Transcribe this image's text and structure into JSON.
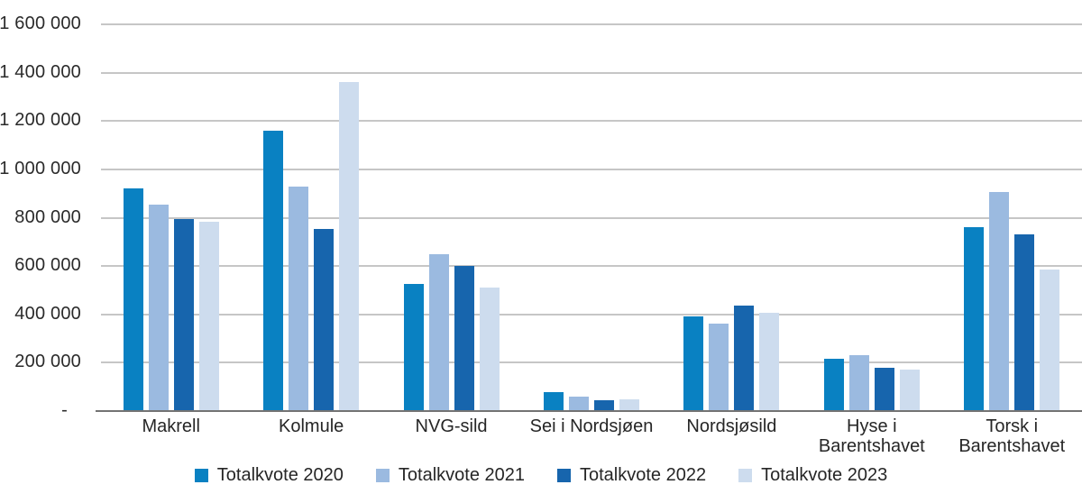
{
  "chart_data": {
    "type": "bar",
    "title": "",
    "xlabel": "",
    "ylabel": "",
    "ylim": [
      0,
      1600000
    ],
    "grid": true,
    "legend_position": "bottom-center",
    "categories": [
      "Makrell",
      "Kolmule",
      "NVG-sild",
      "Sei i Nordsjøen",
      "Nordsjøsild",
      "Hyse i\nBarentshavet",
      "Torsk i\nBarentshavet"
    ],
    "series": [
      {
        "name": "Totalkvote 2020",
        "color": "#0981c2",
        "values": [
          920000,
          1160000,
          525000,
          80000,
          390000,
          215000,
          760000
        ]
      },
      {
        "name": "Totalkvote 2021",
        "color": "#9bbae0",
        "values": [
          855000,
          930000,
          650000,
          60000,
          360000,
          233000,
          905000
        ]
      },
      {
        "name": "Totalkvote 2022",
        "color": "#1765ad",
        "values": [
          795000,
          755000,
          600000,
          45000,
          435000,
          180000,
          730000
        ]
      },
      {
        "name": "Totalkvote 2023",
        "color": "#cddcee",
        "values": [
          785000,
          1360000,
          510000,
          50000,
          405000,
          170000,
          585000
        ]
      }
    ],
    "y_ticks": [
      {
        "value": 1600000,
        "label": "1 600 000"
      },
      {
        "value": 1400000,
        "label": "1 400 000"
      },
      {
        "value": 1200000,
        "label": "1 200 000"
      },
      {
        "value": 1000000,
        "label": "1 000 000"
      },
      {
        "value": 800000,
        "label": "800 000"
      },
      {
        "value": 600000,
        "label": "600 000"
      },
      {
        "value": 400000,
        "label": "400 000"
      },
      {
        "value": 200000,
        "label": "200 000"
      },
      {
        "value": 0,
        "label": "-"
      }
    ],
    "colors": {
      "gridline": "#c6c6c6",
      "axis_line": "#737373",
      "tick_text": "#2a2a2a",
      "label_text": "#262626",
      "background": "#ffffff"
    }
  }
}
